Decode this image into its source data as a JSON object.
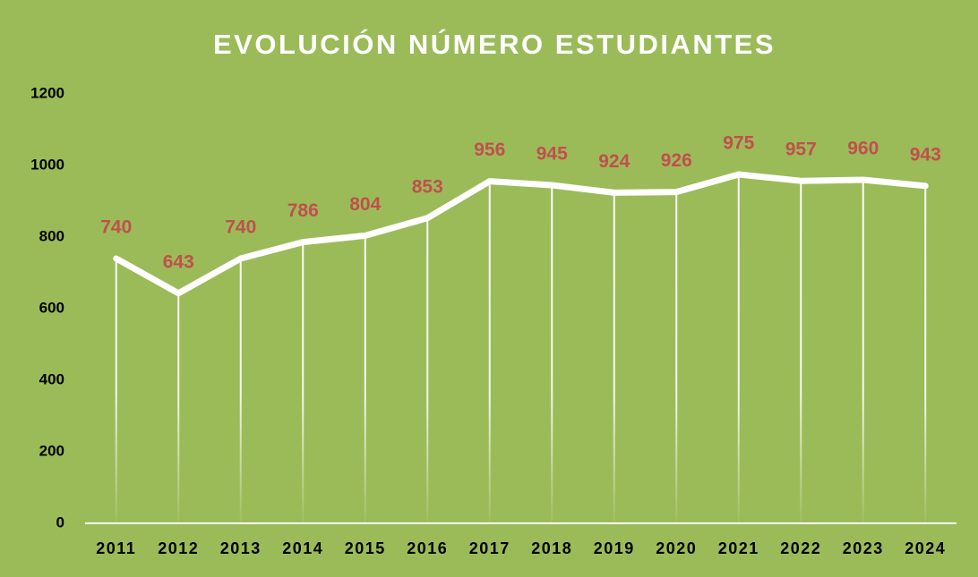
{
  "chart_data": {
    "type": "line",
    "title": "EVOLUCIÓN NÚMERO ESTUDIANTES",
    "categories": [
      "2011",
      "2012",
      "2013",
      "2014",
      "2015",
      "2016",
      "2017",
      "2018",
      "2019",
      "2020",
      "2021",
      "2022",
      "2023",
      "2024"
    ],
    "values": [
      740,
      643,
      740,
      786,
      804,
      853,
      956,
      945,
      924,
      926,
      975,
      957,
      960,
      943
    ],
    "color": "#ffffff",
    "label_color": "#c0504d",
    "background": "#9bbb59",
    "drop_lines": true,
    "ylim": [
      0,
      1200
    ],
    "yticks": [
      0,
      200,
      400,
      600,
      800,
      1000,
      1200
    ]
  }
}
